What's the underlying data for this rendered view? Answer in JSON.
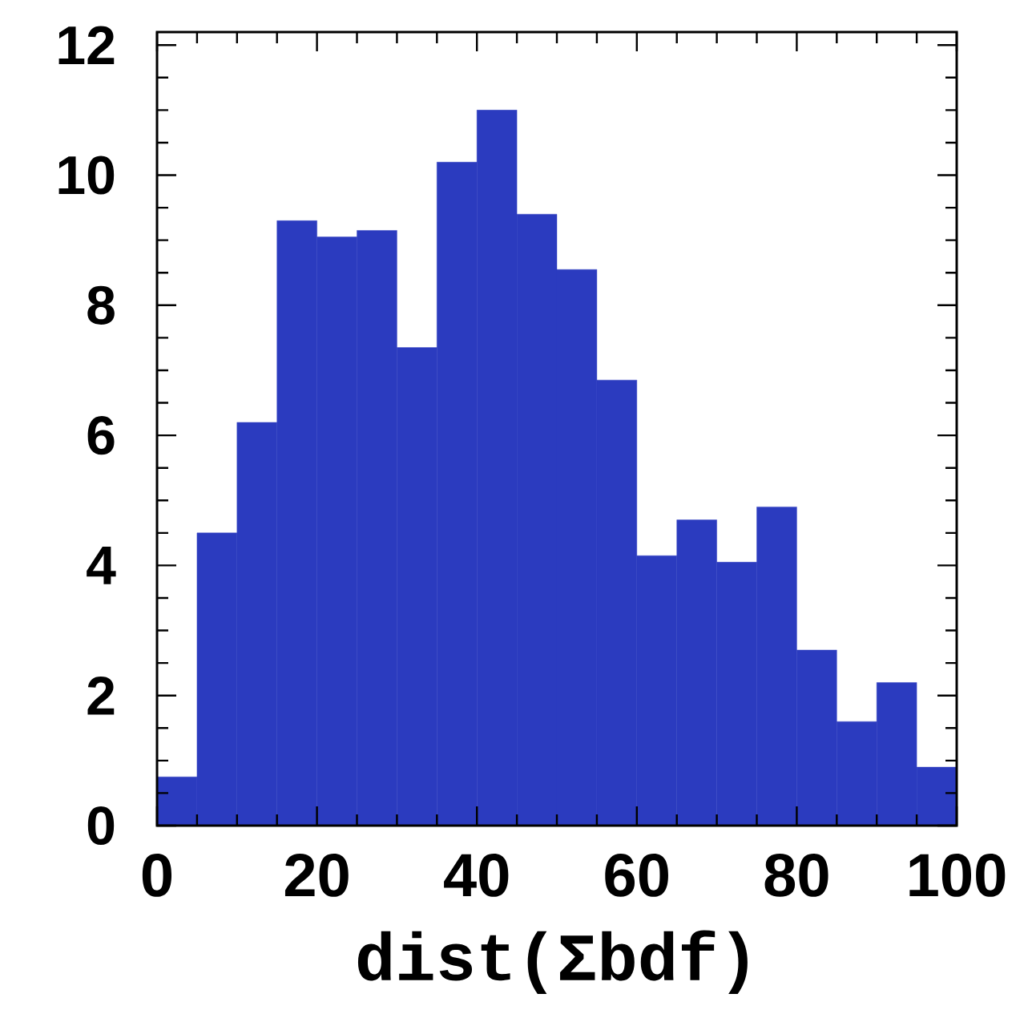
{
  "chart_data": {
    "type": "histogram",
    "xlabel": "dist(Σbdf)",
    "bins": [
      0,
      5,
      10,
      15,
      20,
      25,
      30,
      35,
      40,
      45,
      50,
      55,
      60,
      65,
      70,
      75,
      80,
      85,
      90,
      95,
      100
    ],
    "values": [
      0.75,
      4.5,
      6.2,
      9.3,
      9.05,
      9.15,
      7.35,
      10.2,
      11.0,
      9.4,
      8.55,
      6.85,
      4.15,
      4.7,
      4.05,
      4.9,
      2.7,
      1.6,
      2.2,
      0.9
    ],
    "color": "#2b3bbf",
    "xlim": [
      0,
      100
    ],
    "ylim": [
      0,
      12.2
    ],
    "xticks": [
      0,
      20,
      40,
      60,
      80,
      100
    ],
    "yticks": [
      0,
      2,
      4,
      6,
      8,
      10,
      12
    ],
    "grid": false,
    "legend": false
  }
}
